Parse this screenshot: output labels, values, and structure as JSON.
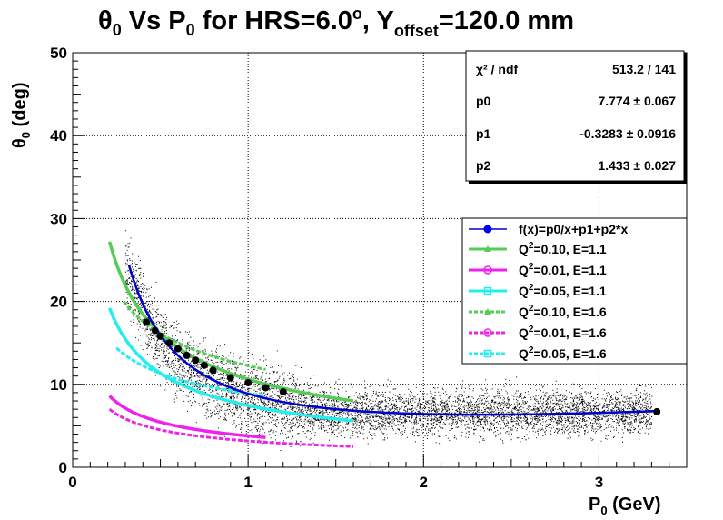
{
  "chart_data": {
    "type": "scatter",
    "title": {
      "theta": "θ",
      "theta_sub": "0",
      "vs": " Vs P",
      "p_sub": "0",
      "hrs": " for HRS=6.0",
      "deg_sup": "o",
      "yoff": ", Y",
      "yoff_sub": "offset",
      "tail": "=120.0 mm"
    },
    "xlabel": {
      "main": "P",
      "sub": "0",
      "unit": " (GeV)"
    },
    "ylabel": {
      "main": "θ",
      "sub": "0",
      "unit": " (deg)"
    },
    "xlim": [
      0,
      3.5
    ],
    "ylim": [
      0,
      50
    ],
    "x_ticks": [
      0,
      1,
      2,
      3
    ],
    "y_ticks": [
      0,
      10,
      20,
      30,
      40,
      50
    ],
    "grid": true,
    "stats_box": {
      "position": "top-right",
      "rows": [
        {
          "label": "χ² / ndf",
          "value": "513.2 / 141"
        },
        {
          "label": "p0",
          "value": "7.774 ± 0.067"
        },
        {
          "label": "p1",
          "value": "-0.3283 ± 0.0916"
        },
        {
          "label": "p2",
          "value": "1.433 ± 0.027"
        }
      ]
    },
    "fit": {
      "p0": 7.774,
      "p1": -0.3283,
      "p2": 1.433,
      "x_range": [
        0.32,
        3.33
      ],
      "color": "#0000cc"
    },
    "profile_points": [
      {
        "x": 0.42,
        "y": 17.5
      },
      {
        "x": 0.47,
        "y": 16.5
      },
      {
        "x": 0.5,
        "y": 15.8
      },
      {
        "x": 0.55,
        "y": 15.0
      },
      {
        "x": 0.6,
        "y": 14.3
      },
      {
        "x": 0.65,
        "y": 13.5
      },
      {
        "x": 0.7,
        "y": 12.9
      },
      {
        "x": 0.75,
        "y": 12.3
      },
      {
        "x": 0.8,
        "y": 11.7
      },
      {
        "x": 0.9,
        "y": 10.8
      },
      {
        "x": 1.0,
        "y": 10.2
      },
      {
        "x": 1.1,
        "y": 9.6
      },
      {
        "x": 1.2,
        "y": 9.1
      },
      {
        "x": 3.33,
        "y": 6.7
      }
    ],
    "scatter_band": {
      "x_range": [
        0.3,
        3.3
      ],
      "color": "#000000"
    },
    "series": [
      {
        "name": "Q²=0.10, E=1.1",
        "color": "#55cc55",
        "style": "solid",
        "x_range": [
          0.21,
          1.6
        ],
        "y_at_start": 27.2,
        "y_at_end": 8.0
      },
      {
        "name": "Q²=0.01, E=1.1",
        "color": "#ee22ee",
        "style": "solid",
        "x_range": [
          0.21,
          1.1
        ],
        "y_at_start": 8.6,
        "y_at_end": 3.6
      },
      {
        "name": "Q²=0.05, E=1.1",
        "color": "#22eeee",
        "style": "solid",
        "x_range": [
          0.21,
          1.6
        ],
        "y_at_start": 19.2,
        "y_at_end": 5.6
      },
      {
        "name": "Q²=0.10, E=1.6",
        "color": "#55cc55",
        "style": "dashed",
        "x_range": [
          0.29,
          1.1
        ],
        "y_at_start": 20.0,
        "y_at_end": 11.8
      },
      {
        "name": "Q²=0.01, E=1.6",
        "color": "#ee22ee",
        "style": "dashed",
        "x_range": [
          0.21,
          1.6
        ],
        "y_at_start": 7.0,
        "y_at_end": 2.5
      },
      {
        "name": "Q²=0.05, E=1.6",
        "color": "#22eeee",
        "style": "dashed",
        "x_range": [
          0.25,
          1.1
        ],
        "y_at_start": 14.4,
        "y_at_end": 8.6
      }
    ],
    "legend": {
      "position": "right",
      "fit_label": "f(x)=p0/x+p1+p2*x",
      "entries": [
        {
          "pre": "Q",
          "sup": "2",
          "post": "=0.10, E=1.1"
        },
        {
          "pre": "Q",
          "sup": "2",
          "post": "=0.01, E=1.1"
        },
        {
          "pre": "Q",
          "sup": "2",
          "post": "=0.05, E=1.1"
        },
        {
          "pre": "Q",
          "sup": "2",
          "post": "=0.10, E=1.6"
        },
        {
          "pre": "Q",
          "sup": "2",
          "post": "=0.01, E=1.6"
        },
        {
          "pre": "Q",
          "sup": "2",
          "post": "=0.05, E=1.6"
        }
      ]
    }
  }
}
